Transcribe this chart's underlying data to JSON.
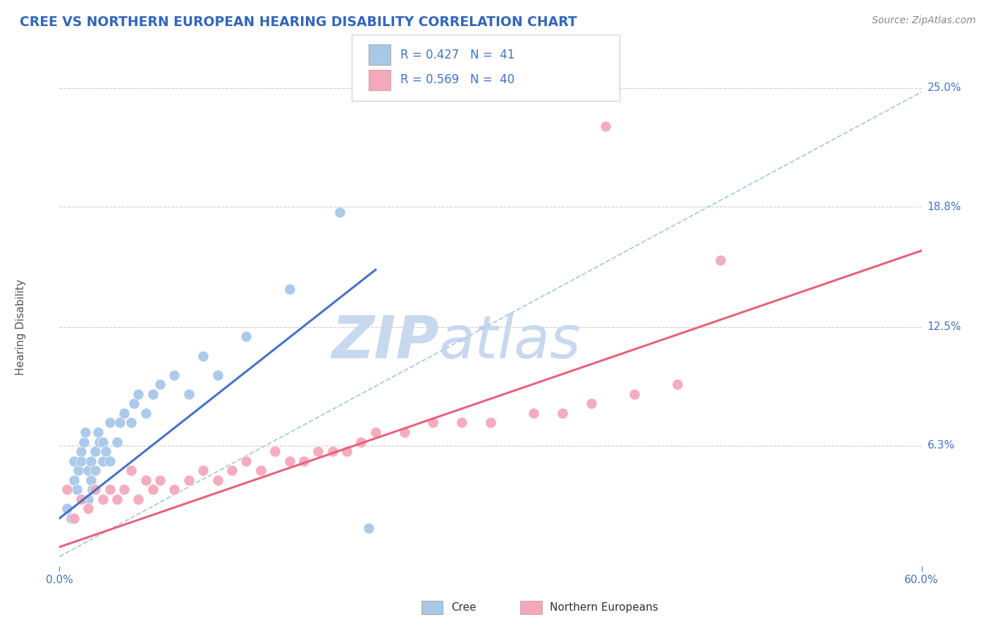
{
  "title": "CREE VS NORTHERN EUROPEAN HEARING DISABILITY CORRELATION CHART",
  "source": "Source: ZipAtlas.com",
  "ylabel": "Hearing Disability",
  "x_min": 0.0,
  "x_max": 0.6,
  "y_min": 0.0,
  "y_max": 0.25,
  "x_tick_labels": [
    "0.0%",
    "60.0%"
  ],
  "y_tick_labels_right": [
    "25.0%",
    "18.8%",
    "12.5%",
    "6.3%"
  ],
  "y_tick_vals_right": [
    0.25,
    0.188,
    0.125,
    0.063
  ],
  "cree_R": 0.427,
  "cree_N": 41,
  "northern_R": 0.569,
  "northern_N": 40,
  "cree_color": "#A8C8E8",
  "northern_color": "#F4A8BC",
  "cree_line_color": "#4472C4",
  "northern_line_color": "#E8607A",
  "trend_line_color": "#A8C8E8",
  "background_color": "#FFFFFF",
  "plot_bg_color": "#FFFFFF",
  "grid_color": "#CCCCCC",
  "watermark_color": "#C8D8EE",
  "cree_scatter_x": [
    0.005,
    0.008,
    0.01,
    0.01,
    0.012,
    0.013,
    0.015,
    0.015,
    0.017,
    0.018,
    0.02,
    0.02,
    0.022,
    0.022,
    0.023,
    0.025,
    0.025,
    0.027,
    0.028,
    0.03,
    0.03,
    0.032,
    0.035,
    0.035,
    0.04,
    0.042,
    0.045,
    0.05,
    0.052,
    0.055,
    0.06,
    0.065,
    0.07,
    0.08,
    0.09,
    0.1,
    0.11,
    0.13,
    0.16,
    0.195,
    0.215
  ],
  "cree_scatter_y": [
    0.03,
    0.025,
    0.045,
    0.055,
    0.04,
    0.05,
    0.06,
    0.055,
    0.065,
    0.07,
    0.035,
    0.05,
    0.045,
    0.055,
    0.04,
    0.05,
    0.06,
    0.07,
    0.065,
    0.055,
    0.065,
    0.06,
    0.055,
    0.075,
    0.065,
    0.075,
    0.08,
    0.075,
    0.085,
    0.09,
    0.08,
    0.09,
    0.095,
    0.1,
    0.09,
    0.11,
    0.1,
    0.12,
    0.145,
    0.185,
    0.02
  ],
  "north_scatter_x": [
    0.005,
    0.01,
    0.015,
    0.02,
    0.025,
    0.03,
    0.035,
    0.04,
    0.045,
    0.05,
    0.055,
    0.06,
    0.065,
    0.07,
    0.08,
    0.09,
    0.1,
    0.11,
    0.12,
    0.13,
    0.14,
    0.15,
    0.16,
    0.17,
    0.18,
    0.19,
    0.2,
    0.21,
    0.22,
    0.24,
    0.26,
    0.28,
    0.3,
    0.33,
    0.35,
    0.37,
    0.4,
    0.43,
    0.46,
    0.38
  ],
  "north_scatter_y": [
    0.04,
    0.025,
    0.035,
    0.03,
    0.04,
    0.035,
    0.04,
    0.035,
    0.04,
    0.05,
    0.035,
    0.045,
    0.04,
    0.045,
    0.04,
    0.045,
    0.05,
    0.045,
    0.05,
    0.055,
    0.05,
    0.06,
    0.055,
    0.055,
    0.06,
    0.06,
    0.06,
    0.065,
    0.07,
    0.07,
    0.075,
    0.075,
    0.075,
    0.08,
    0.08,
    0.085,
    0.09,
    0.095,
    0.16,
    0.23
  ]
}
